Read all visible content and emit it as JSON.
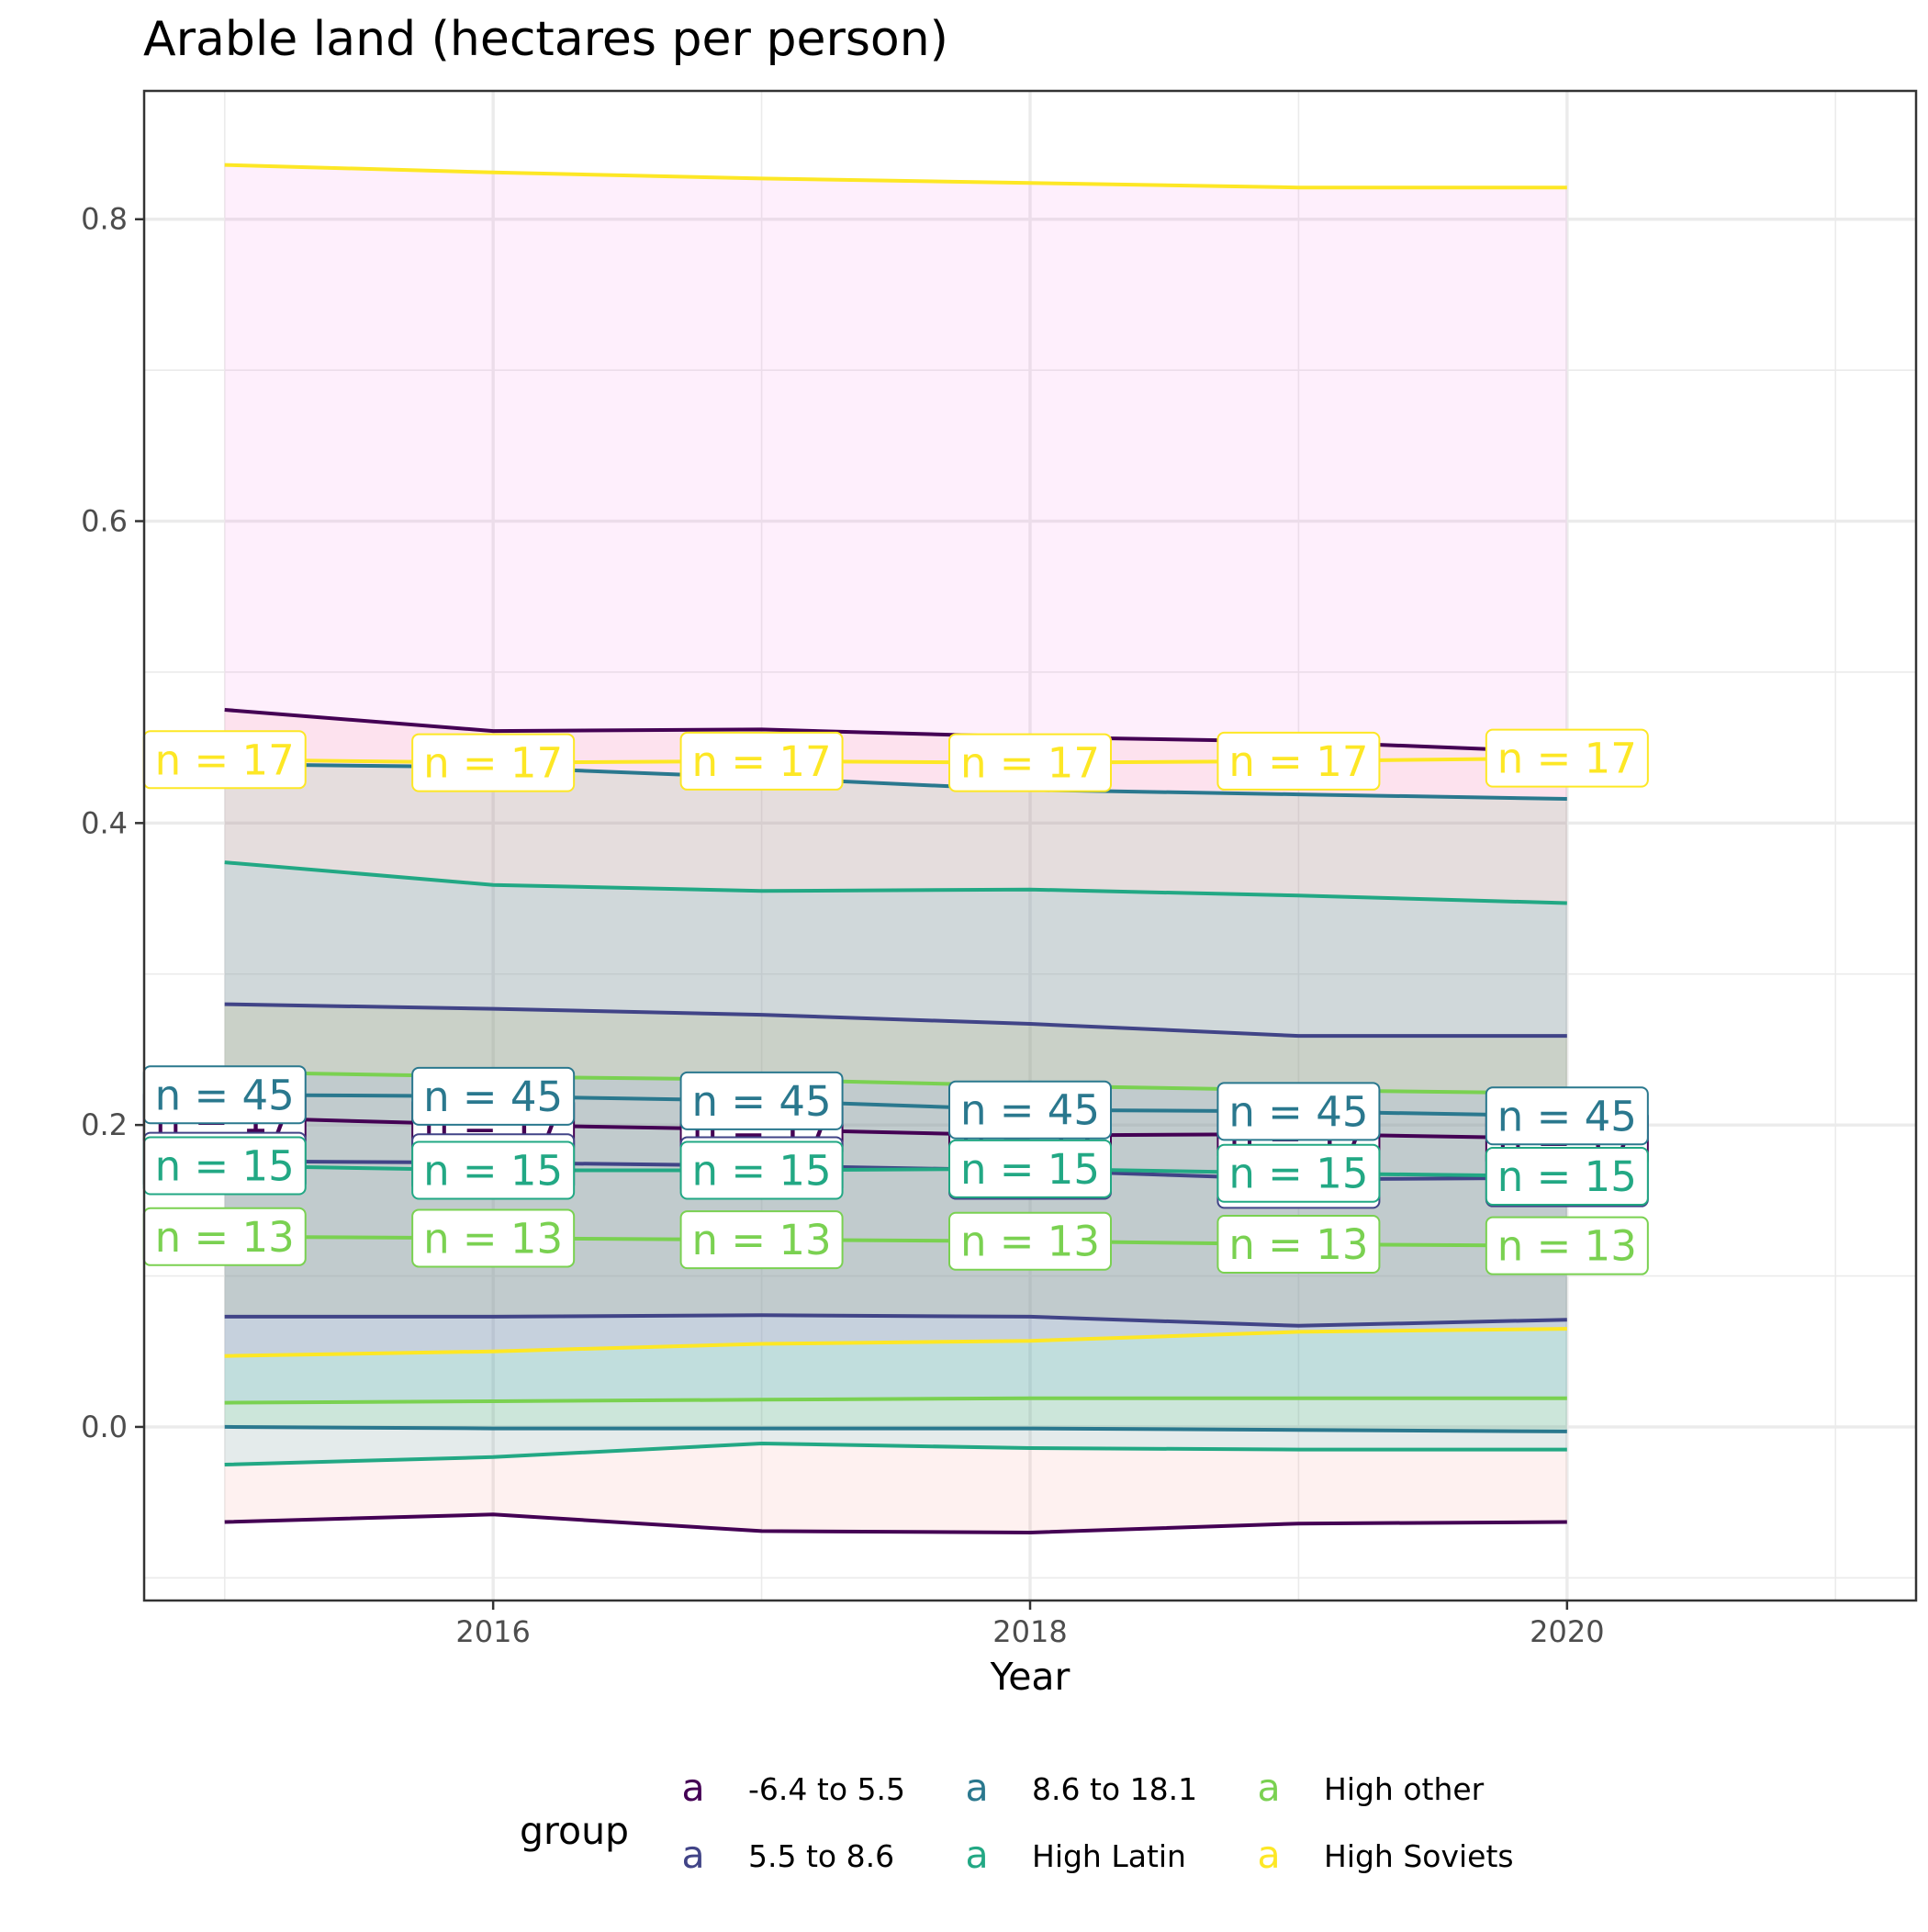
{
  "chart_data": {
    "type": "line",
    "title": "Arable land (hectares per person)",
    "xlabel": "Year",
    "ylabel": "",
    "xlim": [
      2014.7,
      2021.3
    ],
    "ylim": [
      -0.115,
      0.885
    ],
    "x_ticks": [
      2016,
      2018,
      2020
    ],
    "x_tick_labels": [
      "2016",
      "2018",
      "2020"
    ],
    "y_ticks": [
      0.0,
      0.2,
      0.4,
      0.6,
      0.8
    ],
    "y_tick_labels": [
      "0.0",
      "0.2",
      "0.4",
      "0.6",
      "0.8"
    ],
    "grid": true,
    "legend": {
      "title": "group",
      "position": "bottom",
      "key_glyph": "a",
      "entries": [
        {
          "label": "-6.4 to 5.5",
          "color": "#440154"
        },
        {
          "label": "5.5 to 8.6",
          "color": "#414487"
        },
        {
          "label": "8.6 to 18.1",
          "color": "#2A788E"
        },
        {
          "label": "High Latin",
          "color": "#22A884"
        },
        {
          "label": "High other",
          "color": "#7AD151"
        },
        {
          "label": "High Soviets",
          "color": "#FDE725"
        }
      ]
    },
    "x": [
      2015,
      2016,
      2017,
      2018,
      2019,
      2020
    ],
    "series": [
      {
        "name": "-6.4 to 5.5",
        "color": "#440154",
        "band_fill": "#F8766D",
        "mean": [
          0.205,
          0.2,
          0.197,
          0.193,
          0.194,
          0.191
        ],
        "upper": [
          0.475,
          0.461,
          0.462,
          0.457,
          0.454,
          0.447
        ],
        "lower": [
          -0.063,
          -0.058,
          -0.069,
          -0.07,
          -0.064,
          -0.063
        ],
        "n_label": "n = 17"
      },
      {
        "name": "5.5 to 8.6",
        "color": "#414487",
        "band_fill": "#B79F00",
        "mean": [
          0.176,
          0.175,
          0.173,
          0.17,
          0.164,
          0.165
        ],
        "upper": [
          0.28,
          0.277,
          0.273,
          0.267,
          0.259,
          0.259
        ],
        "lower": [
          0.073,
          0.073,
          0.074,
          0.073,
          0.067,
          0.071
        ],
        "n_label": "n = 17"
      },
      {
        "name": "8.6 to 18.1",
        "color": "#2A788E",
        "band_fill": "#00BA38",
        "mean": [
          0.22,
          0.219,
          0.216,
          0.21,
          0.209,
          0.206
        ],
        "upper": [
          0.439,
          0.437,
          0.43,
          0.422,
          0.419,
          0.416
        ],
        "lower": [
          0.0,
          -0.001,
          -0.001,
          -0.001,
          -0.002,
          -0.003
        ],
        "n_label": "n = 45"
      },
      {
        "name": "High Latin",
        "color": "#22A884",
        "band_fill": "#00BFC4",
        "mean": [
          0.173,
          0.17,
          0.17,
          0.171,
          0.168,
          0.166
        ],
        "upper": [
          0.374,
          0.359,
          0.355,
          0.356,
          0.352,
          0.347
        ],
        "lower": [
          -0.025,
          -0.02,
          -0.011,
          -0.014,
          -0.015,
          -0.015
        ],
        "n_label": "n = 15"
      },
      {
        "name": "High other",
        "color": "#7AD151",
        "band_fill": "#619CFF",
        "mean": [
          0.126,
          0.125,
          0.124,
          0.123,
          0.121,
          0.12
        ],
        "upper": [
          0.235,
          0.232,
          0.23,
          0.226,
          0.223,
          0.221
        ],
        "lower": [
          0.016,
          0.017,
          0.018,
          0.019,
          0.019,
          0.019
        ],
        "n_label": "n = 13"
      },
      {
        "name": "High Soviets",
        "color": "#FDE725",
        "band_fill": "#F564E3",
        "mean": [
          0.442,
          0.44,
          0.441,
          0.44,
          0.441,
          0.443
        ],
        "upper": [
          0.836,
          0.831,
          0.827,
          0.824,
          0.821,
          0.821
        ],
        "lower": [
          0.047,
          0.05,
          0.055,
          0.057,
          0.063,
          0.065
        ],
        "n_label": "n = 17"
      }
    ]
  }
}
